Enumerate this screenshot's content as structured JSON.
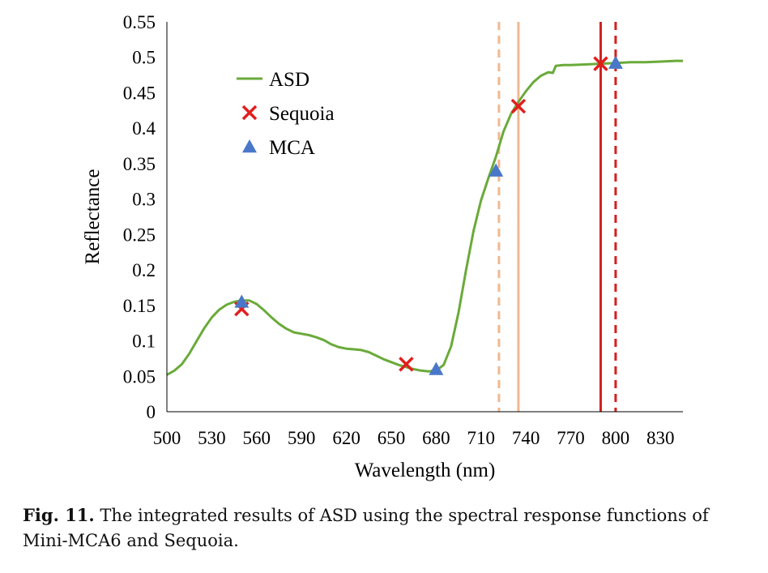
{
  "chart_data": {
    "type": "line",
    "xlabel": "Wavelength (nm)",
    "ylabel": "Reflectance",
    "xlim": [
      500,
      845
    ],
    "ylim": [
      0,
      0.55
    ],
    "x_ticks": [
      500,
      530,
      560,
      590,
      620,
      650,
      680,
      710,
      740,
      770,
      800,
      830
    ],
    "y_ticks": [
      0,
      0.05,
      0.1,
      0.15,
      0.2,
      0.25,
      0.3,
      0.35,
      0.4,
      0.45,
      0.5,
      0.55
    ],
    "y_tick_labels": [
      "0",
      "0.05",
      "0.1",
      "0.15",
      "0.2",
      "0.25",
      "0.3",
      "0.35",
      "0.4",
      "0.45",
      "0.5",
      "0.55"
    ],
    "legend": {
      "position": "top-left"
    },
    "grid": false,
    "series": [
      {
        "name": "ASD",
        "kind": "line",
        "color": "#6aaa3a",
        "x": [
          500,
          505,
          510,
          515,
          520,
          525,
          530,
          535,
          540,
          545,
          550,
          555,
          560,
          565,
          570,
          575,
          580,
          585,
          590,
          595,
          600,
          605,
          610,
          615,
          620,
          625,
          630,
          635,
          640,
          645,
          650,
          655,
          660,
          665,
          670,
          675,
          680,
          685,
          690,
          695,
          700,
          705,
          710,
          715,
          720,
          725,
          730,
          735,
          740,
          745,
          750,
          755,
          758,
          760,
          765,
          770,
          780,
          790,
          800,
          810,
          820,
          830,
          840,
          845
        ],
        "y": [
          0.052,
          0.058,
          0.067,
          0.082,
          0.1,
          0.118,
          0.133,
          0.144,
          0.151,
          0.155,
          0.157,
          0.157,
          0.152,
          0.143,
          0.133,
          0.124,
          0.117,
          0.112,
          0.11,
          0.108,
          0.105,
          0.101,
          0.095,
          0.091,
          0.089,
          0.088,
          0.087,
          0.084,
          0.079,
          0.074,
          0.07,
          0.066,
          0.063,
          0.06,
          0.058,
          0.057,
          0.058,
          0.066,
          0.092,
          0.14,
          0.2,
          0.255,
          0.298,
          0.33,
          0.36,
          0.395,
          0.42,
          0.437,
          0.452,
          0.465,
          0.474,
          0.479,
          0.478,
          0.488,
          0.489,
          0.489,
          0.49,
          0.491,
          0.492,
          0.493,
          0.493,
          0.494,
          0.495,
          0.495
        ]
      },
      {
        "name": "Sequoia",
        "kind": "marker-x",
        "color": "#e21e1e",
        "x": [
          550,
          660,
          735,
          790
        ],
        "y": [
          0.145,
          0.067,
          0.431,
          0.491
        ]
      },
      {
        "name": "MCA",
        "kind": "marker-triangle",
        "color": "#4a78c8",
        "x": [
          550,
          680,
          720,
          800
        ],
        "y": [
          0.155,
          0.06,
          0.34,
          0.492
        ]
      }
    ],
    "vlines": [
      {
        "x": 722,
        "color": "#f2b890",
        "style": "dashed"
      },
      {
        "x": 735,
        "color": "#f2b890",
        "style": "solid"
      },
      {
        "x": 790,
        "color": "#d41f1f",
        "style": "solid"
      },
      {
        "x": 800,
        "color": "#d41f1f",
        "style": "dashed"
      }
    ]
  },
  "caption": {
    "label": "Fig. 11.",
    "text": " The integrated results of ASD using the spectral response functions of Mini-MCA6 and Sequoia."
  }
}
